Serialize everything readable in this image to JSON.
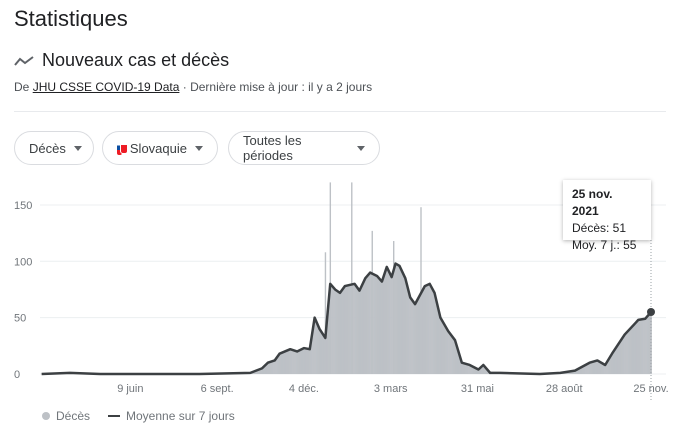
{
  "header": {
    "title": "Statistiques",
    "subtitle": "Nouveaux cas et décès",
    "source_prefix": "De",
    "source_link": "JHU CSSE COVID-19 Data",
    "updated": "· Dernière mise à jour : il y a 2 jours"
  },
  "filters": {
    "metric": "Décès",
    "country": "Slovaquie",
    "period": "Toutes les périodes"
  },
  "tooltip": {
    "date": "25 nov. 2021",
    "deaths": "Décès: 51",
    "avg": "Moy. 7 j.: 55"
  },
  "legend": {
    "bars": "Décès",
    "line": "Moyenne sur 7 jours"
  },
  "colors": {
    "bars": "#bdc1c6",
    "line": "#3c4043",
    "grid": "#eceff1"
  },
  "chart_data": {
    "type": "bar",
    "ylim": [
      0,
      170
    ],
    "y_ticks": [
      "0",
      "50",
      "100",
      "150"
    ],
    "x_tick_labels": [
      [
        "2020-06-09",
        "9 juin"
      ],
      [
        "2020-09-06",
        "6 sept."
      ],
      [
        "2020-12-04",
        "4 déc."
      ],
      [
        "2021-03-03",
        "3 mars"
      ],
      [
        "2021-05-31",
        "31 mai"
      ],
      [
        "2021-08-28",
        "28 août"
      ],
      [
        "2021-11-25",
        "25 nov."
      ]
    ],
    "grid": true,
    "series": [
      {
        "name": "Moyenne sur 7 jours",
        "type": "line",
        "points": [
          [
            "2020-03-10",
            0
          ],
          [
            "2020-04-08",
            1
          ],
          [
            "2020-05-09",
            0
          ],
          [
            "2020-08-19",
            0
          ],
          [
            "2020-10-10",
            1
          ],
          [
            "2020-10-22",
            5
          ],
          [
            "2020-10-28",
            10
          ],
          [
            "2020-11-04",
            12
          ],
          [
            "2020-11-09",
            18
          ],
          [
            "2020-11-20",
            22
          ],
          [
            "2020-11-27",
            20
          ],
          [
            "2020-12-04",
            23
          ],
          [
            "2020-12-10",
            22
          ],
          [
            "2020-12-15",
            50
          ],
          [
            "2020-12-20",
            40
          ],
          [
            "2020-12-26",
            32
          ],
          [
            "2020-12-31",
            80
          ],
          [
            "2021-01-05",
            75
          ],
          [
            "2021-01-10",
            72
          ],
          [
            "2021-01-15",
            78
          ],
          [
            "2021-01-25",
            80
          ],
          [
            "2021-01-30",
            74
          ],
          [
            "2021-02-05",
            85
          ],
          [
            "2021-02-10",
            90
          ],
          [
            "2021-02-17",
            87
          ],
          [
            "2021-02-22",
            82
          ],
          [
            "2021-02-27",
            95
          ],
          [
            "2021-03-04",
            86
          ],
          [
            "2021-03-08",
            98
          ],
          [
            "2021-03-12",
            96
          ],
          [
            "2021-03-18",
            85
          ],
          [
            "2021-03-23",
            68
          ],
          [
            "2021-03-28",
            62
          ],
          [
            "2021-04-02",
            70
          ],
          [
            "2021-04-07",
            78
          ],
          [
            "2021-04-12",
            80
          ],
          [
            "2021-04-17",
            72
          ],
          [
            "2021-04-23",
            50
          ],
          [
            "2021-05-01",
            38
          ],
          [
            "2021-05-08",
            30
          ],
          [
            "2021-05-15",
            10
          ],
          [
            "2021-05-23",
            8
          ],
          [
            "2021-06-01",
            4
          ],
          [
            "2021-06-06",
            8
          ],
          [
            "2021-06-13",
            1
          ],
          [
            "2021-06-23",
            1
          ],
          [
            "2021-08-03",
            0
          ],
          [
            "2021-08-24",
            1
          ],
          [
            "2021-09-08",
            3
          ],
          [
            "2021-09-23",
            10
          ],
          [
            "2021-10-01",
            12
          ],
          [
            "2021-10-09",
            8
          ],
          [
            "2021-10-16",
            18
          ],
          [
            "2021-10-29",
            35
          ],
          [
            "2021-11-12",
            48
          ],
          [
            "2021-11-19",
            49
          ],
          [
            "2021-11-25",
            55
          ]
        ]
      },
      {
        "name": "Décès",
        "type": "bar",
        "peaks": [
          [
            "2020-12-26",
            108
          ],
          [
            "2020-12-31",
            170
          ],
          [
            "2021-01-22",
            170
          ],
          [
            "2021-02-12",
            127
          ],
          [
            "2021-03-06",
            118
          ],
          [
            "2021-04-03",
            148
          ],
          [
            "2021-11-25",
            51
          ]
        ]
      }
    ]
  }
}
